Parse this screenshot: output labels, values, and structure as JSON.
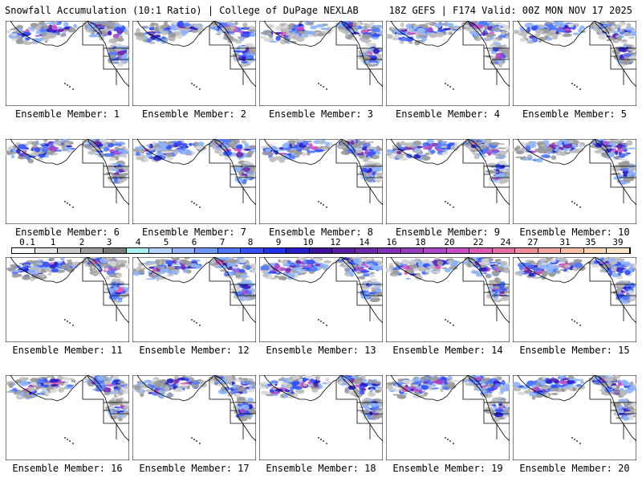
{
  "header": {
    "left": "Snowfall Accumulation (10:1 Ratio) | College of DuPage NEXLAB",
    "right": "18Z GEFS | F174 Valid: 00Z MON NOV 17 2025"
  },
  "panels": [
    {
      "label": "Ensemble Member: 1"
    },
    {
      "label": "Ensemble Member: 2"
    },
    {
      "label": "Ensemble Member: 3"
    },
    {
      "label": "Ensemble Member: 4"
    },
    {
      "label": "Ensemble Member: 5"
    },
    {
      "label": "Ensemble Member: 6"
    },
    {
      "label": "Ensemble Member: 7"
    },
    {
      "label": "Ensemble Member: 8"
    },
    {
      "label": "Ensemble Member: 9"
    },
    {
      "label": "Ensemble Member: 10"
    },
    {
      "label": "Ensemble Member: 11"
    },
    {
      "label": "Ensemble Member: 12"
    },
    {
      "label": "Ensemble Member: 13"
    },
    {
      "label": "Ensemble Member: 14"
    },
    {
      "label": "Ensemble Member: 15"
    },
    {
      "label": "Ensemble Member: 16"
    },
    {
      "label": "Ensemble Member: 17"
    },
    {
      "label": "Ensemble Member: 18"
    },
    {
      "label": "Ensemble Member: 19"
    },
    {
      "label": "Ensemble Member: 20"
    }
  ],
  "colorbar": {
    "labels": [
      "0.1",
      "1",
      "2",
      "3",
      "4",
      "5",
      "6",
      "7",
      "8",
      "9",
      "10",
      "12",
      "14",
      "16",
      "18",
      "20",
      "22",
      "24",
      "27",
      "31",
      "35",
      "39"
    ],
    "colors": [
      "#ffffff",
      "#e6e6e6",
      "#c8c8c8",
      "#a0a0a0",
      "#7a7a7a",
      "#a8f0f0",
      "#b4d2ff",
      "#8cb4ff",
      "#6e96ff",
      "#5078ff",
      "#3250ff",
      "#1e32e6",
      "#281ec8",
      "#3c14a0",
      "#5a1ea0",
      "#6e28aa",
      "#8232b4",
      "#963cbe",
      "#aa46c8",
      "#c850c8",
      "#dc5ab4",
      "#e66ea0",
      "#f08c96",
      "#f0a5a0",
      "#f5bea5",
      "#fad2b4",
      "#fde6c8"
    ]
  }
}
